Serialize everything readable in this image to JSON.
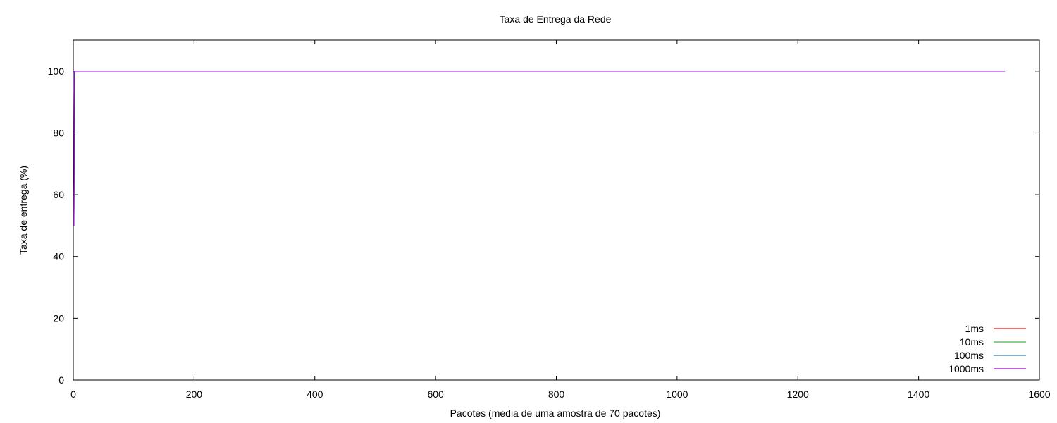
{
  "chart_data": {
    "type": "line",
    "title": "Taxa de Entrega da Rede",
    "xlabel": "Pacotes (media de uma amostra de 70 pacotes)",
    "ylabel": "Taxa de entrega (%)",
    "xlim": [
      0,
      1600
    ],
    "ylim": [
      0,
      110
    ],
    "xticks": [
      0,
      200,
      400,
      600,
      800,
      1000,
      1200,
      1400,
      1600
    ],
    "yticks": [
      0,
      20,
      40,
      60,
      80,
      100
    ],
    "grid": false,
    "legend_position": "bottom-right",
    "series": [
      {
        "name": "1ms",
        "color": "#e41a1c",
        "x": [
          1,
          2,
          1543
        ],
        "y": [
          50,
          100,
          100
        ]
      },
      {
        "name": "10ms",
        "color": "#4daf4a",
        "x": [
          1,
          2,
          1543
        ],
        "y": [
          50,
          100,
          100
        ]
      },
      {
        "name": "100ms",
        "color": "#377eb8",
        "x": [
          1,
          2,
          1543
        ],
        "y": [
          50,
          100,
          100
        ]
      },
      {
        "name": "1000ms",
        "color": "#9400d3",
        "x": [
          1,
          2,
          1543
        ],
        "y": [
          50,
          100,
          100
        ]
      }
    ]
  }
}
